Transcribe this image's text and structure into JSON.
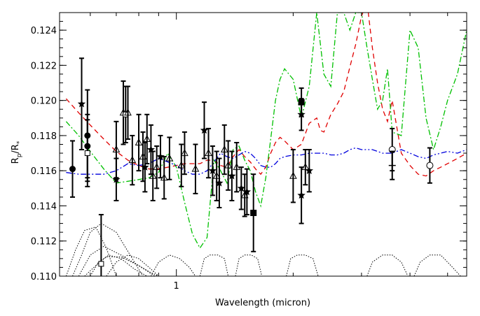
{
  "chart_data": {
    "type": "scatter",
    "title": "",
    "xlabel": "Wavelength (micron)",
    "ylabel": "Rp/R*",
    "ylabel_parts": {
      "base": "R",
      "sub1": "p",
      "slash": "/R",
      "sub2": "*"
    },
    "xscale": "log",
    "xlim": [
      0.5,
      5.6
    ],
    "ylim": [
      0.11,
      0.125
    ],
    "x_ticks": [
      {
        "value": 1,
        "label": "1"
      }
    ],
    "y_ticks": [
      {
        "value": 0.11,
        "label": "0.110"
      },
      {
        "value": 0.112,
        "label": "0.112"
      },
      {
        "value": 0.114,
        "label": "0.114"
      },
      {
        "value": 0.116,
        "label": "0.116"
      },
      {
        "value": 0.118,
        "label": "0.118"
      },
      {
        "value": 0.12,
        "label": "0.120"
      },
      {
        "value": 0.122,
        "label": "0.122"
      },
      {
        "value": 0.124,
        "label": "0.124"
      }
    ],
    "grid": false,
    "legend": "none",
    "colors": {
      "red_model": "#e00000",
      "green_model": "#00c000",
      "blue_model": "#0000dd",
      "filters": "#000000",
      "points": "#000000"
    },
    "series": [
      {
        "style": "dashed",
        "color": "#e00000",
        "x": [
          0.52,
          0.56,
          0.6,
          0.65,
          0.7,
          0.75,
          0.8,
          0.85,
          0.9,
          0.95,
          1.0,
          1.05,
          1.1,
          1.15,
          1.2,
          1.25,
          1.3,
          1.35,
          1.4,
          1.45,
          1.5,
          1.55,
          1.6,
          1.65,
          1.7,
          1.75,
          1.8,
          1.85,
          1.9,
          2.0,
          2.1,
          2.2,
          2.3,
          2.35,
          2.4,
          2.5,
          2.6,
          2.7,
          2.8,
          2.9,
          3.0,
          3.1,
          3.2,
          3.3,
          3.4,
          3.5,
          3.6,
          3.8,
          4.0,
          4.2,
          4.4,
          4.6,
          4.8,
          5.0,
          5.3,
          5.6
        ],
        "y": [
          0.1201,
          0.1193,
          0.1186,
          0.1178,
          0.1171,
          0.1166,
          0.1163,
          0.1161,
          0.1161,
          0.1162,
          0.1163,
          0.1164,
          0.1164,
          0.1164,
          0.1166,
          0.1166,
          0.1163,
          0.1162,
          0.1168,
          0.1172,
          0.1168,
          0.1165,
          0.1161,
          0.1158,
          0.1162,
          0.117,
          0.1176,
          0.1179,
          0.1177,
          0.1172,
          0.1175,
          0.1187,
          0.119,
          0.1183,
          0.1182,
          0.1192,
          0.1198,
          0.1205,
          0.1219,
          0.1232,
          0.1248,
          0.1256,
          0.123,
          0.121,
          0.1195,
          0.1188,
          0.12,
          0.117,
          0.1163,
          0.1158,
          0.1157,
          0.116,
          0.1162,
          0.1164,
          0.1167,
          0.117
        ]
      },
      {
        "style": "dash-dot",
        "color": "#00c000",
        "x": [
          0.52,
          0.56,
          0.6,
          0.65,
          0.7,
          0.75,
          0.8,
          0.85,
          0.9,
          0.95,
          1.0,
          1.05,
          1.1,
          1.15,
          1.2,
          1.25,
          1.3,
          1.35,
          1.4,
          1.45,
          1.5,
          1.55,
          1.6,
          1.65,
          1.7,
          1.75,
          1.8,
          1.85,
          1.9,
          2.0,
          2.1,
          2.2,
          2.3,
          2.4,
          2.5,
          2.6,
          2.7,
          2.8,
          2.9,
          3.0,
          3.1,
          3.2,
          3.3,
          3.4,
          3.5,
          3.6,
          3.8,
          4.0,
          4.2,
          4.4,
          4.6,
          4.8,
          5.0,
          5.3,
          5.6
        ],
        "y": [
          0.1188,
          0.118,
          0.1171,
          0.1161,
          0.1153,
          0.1154,
          0.1155,
          0.1156,
          0.1159,
          0.117,
          0.1162,
          0.1142,
          0.1124,
          0.1116,
          0.1122,
          0.1166,
          0.116,
          0.1153,
          0.1172,
          0.1174,
          0.1166,
          0.116,
          0.1148,
          0.114,
          0.1156,
          0.1178,
          0.12,
          0.1212,
          0.1218,
          0.1212,
          0.119,
          0.1208,
          0.125,
          0.1215,
          0.1208,
          0.125,
          0.125,
          0.124,
          0.125,
          0.125,
          0.123,
          0.1212,
          0.1195,
          0.12,
          0.1218,
          0.1182,
          0.118,
          0.124,
          0.123,
          0.119,
          0.1172,
          0.1185,
          0.12,
          0.1215,
          0.124
        ]
      },
      {
        "style": "dash-dot-dot",
        "color": "#0000dd",
        "x": [
          0.52,
          0.56,
          0.6,
          0.65,
          0.7,
          0.75,
          0.8,
          0.85,
          0.9,
          0.95,
          1.0,
          1.05,
          1.1,
          1.15,
          1.2,
          1.25,
          1.3,
          1.35,
          1.4,
          1.45,
          1.5,
          1.55,
          1.6,
          1.65,
          1.7,
          1.75,
          1.8,
          1.85,
          1.9,
          2.0,
          2.1,
          2.2,
          2.3,
          2.4,
          2.5,
          2.6,
          2.7,
          2.8,
          2.9,
          3.0,
          3.2,
          3.4,
          3.6,
          3.8,
          4.0,
          4.2,
          4.4,
          4.6,
          4.8,
          5.0,
          5.3,
          5.6
        ],
        "y": [
          0.1159,
          0.1158,
          0.1158,
          0.1158,
          0.116,
          0.1164,
          0.1163,
          0.1164,
          0.1167,
          0.1165,
          0.1163,
          0.116,
          0.1158,
          0.1158,
          0.116,
          0.1165,
          0.117,
          0.1168,
          0.1167,
          0.1169,
          0.1171,
          0.117,
          0.1167,
          0.1163,
          0.1162,
          0.1162,
          0.1164,
          0.1167,
          0.1168,
          0.1169,
          0.1169,
          0.117,
          0.117,
          0.117,
          0.1169,
          0.1169,
          0.117,
          0.1172,
          0.1173,
          0.1172,
          0.1172,
          0.117,
          0.117,
          0.1172,
          0.117,
          0.1168,
          0.1167,
          0.1169,
          0.117,
          0.1171,
          0.117,
          0.1172
        ]
      }
    ],
    "measurements": [
      {
        "marker": "circle-filled",
        "x": 0.54,
        "y": 0.1161,
        "err": 0.0016
      },
      {
        "marker": "star",
        "x": 0.57,
        "y": 0.1198,
        "err": 0.0026
      },
      {
        "marker": "circle-filled",
        "x": 0.59,
        "y": 0.118,
        "err": 0.0026
      },
      {
        "marker": "circle-filled",
        "x": 0.59,
        "y": 0.1174,
        "err": 0.0018
      },
      {
        "marker": "square-open",
        "x": 0.59,
        "y": 0.117,
        "err": 0.0019
      },
      {
        "marker": "square-open",
        "x": 0.64,
        "y": 0.1107,
        "err": 0.0028
      },
      {
        "marker": "triangle-open",
        "x": 0.7,
        "y": 0.1172,
        "err": 0.0016
      },
      {
        "marker": "star",
        "x": 0.7,
        "y": 0.1155,
        "err": 0.0012
      },
      {
        "marker": "triangle-open",
        "x": 0.73,
        "y": 0.1193,
        "err": 0.0018
      },
      {
        "marker": "square-open",
        "x": 0.74,
        "y": 0.1192,
        "err": 0.0016
      },
      {
        "marker": "triangle-open",
        "x": 0.75,
        "y": 0.1193,
        "err": 0.0015
      },
      {
        "marker": "triangle-open",
        "x": 0.77,
        "y": 0.1166,
        "err": 0.0014
      },
      {
        "marker": "triangle-open",
        "x": 0.8,
        "y": 0.1176,
        "err": 0.0016
      },
      {
        "marker": "triangle-open",
        "x": 0.82,
        "y": 0.1168,
        "err": 0.0014
      },
      {
        "marker": "star",
        "x": 0.83,
        "y": 0.1162,
        "err": 0.0014
      },
      {
        "marker": "triangle-open",
        "x": 0.84,
        "y": 0.1178,
        "err": 0.0014
      },
      {
        "marker": "star",
        "x": 0.86,
        "y": 0.1172,
        "err": 0.0014
      },
      {
        "marker": "triangle-open",
        "x": 0.87,
        "y": 0.1157,
        "err": 0.0014
      },
      {
        "marker": "triangle-open",
        "x": 0.89,
        "y": 0.1162,
        "err": 0.0012
      },
      {
        "marker": "star",
        "x": 0.91,
        "y": 0.1168,
        "err": 0.0012
      },
      {
        "marker": "triangle-open",
        "x": 0.93,
        "y": 0.1156,
        "err": 0.0012
      },
      {
        "marker": "triangle-open",
        "x": 0.96,
        "y": 0.1167,
        "err": 0.0012
      },
      {
        "marker": "triangle-open",
        "x": 1.03,
        "y": 0.1163,
        "err": 0.0012
      },
      {
        "marker": "triangle-open",
        "x": 1.05,
        "y": 0.117,
        "err": 0.0012
      },
      {
        "marker": "triangle-open",
        "x": 1.12,
        "y": 0.1161,
        "err": 0.0014
      },
      {
        "marker": "star",
        "x": 1.18,
        "y": 0.1183,
        "err": 0.0016
      },
      {
        "marker": "triangle-open",
        "x": 1.21,
        "y": 0.117,
        "err": 0.0014
      },
      {
        "marker": "star",
        "x": 1.24,
        "y": 0.116,
        "err": 0.0014
      },
      {
        "marker": "triangle-open",
        "x": 1.27,
        "y": 0.1157,
        "err": 0.0014
      },
      {
        "marker": "star",
        "x": 1.29,
        "y": 0.1153,
        "err": 0.0014
      },
      {
        "marker": "triangle-open",
        "x": 1.33,
        "y": 0.1172,
        "err": 0.0014
      },
      {
        "marker": "triangle-open",
        "x": 1.36,
        "y": 0.1163,
        "err": 0.0014
      },
      {
        "marker": "star",
        "x": 1.39,
        "y": 0.1157,
        "err": 0.0014
      },
      {
        "marker": "triangle-open",
        "x": 1.43,
        "y": 0.1162,
        "err": 0.0014
      },
      {
        "marker": "star",
        "x": 1.47,
        "y": 0.115,
        "err": 0.0012
      },
      {
        "marker": "triangle-open",
        "x": 1.5,
        "y": 0.1146,
        "err": 0.0012
      },
      {
        "marker": "star",
        "x": 1.52,
        "y": 0.1148,
        "err": 0.0013
      },
      {
        "marker": "square-filled",
        "x": 1.58,
        "y": 0.1136,
        "err": 0.0022
      },
      {
        "marker": "triangle-open",
        "x": 2.0,
        "y": 0.1157,
        "err": 0.0015
      },
      {
        "marker": "star",
        "x": 2.1,
        "y": 0.1146,
        "err": 0.0016
      },
      {
        "marker": "square-filled",
        "x": 2.1,
        "y": 0.1199,
        "err": 0.0008
      },
      {
        "marker": "star",
        "x": 2.1,
        "y": 0.1192,
        "err": 0.0009
      },
      {
        "marker": "triangle-open",
        "x": 2.15,
        "y": 0.1162,
        "err": 0.001
      },
      {
        "marker": "star",
        "x": 2.2,
        "y": 0.116,
        "err": 0.0012
      },
      {
        "marker": "circle-open",
        "x": 3.6,
        "y": 0.1172,
        "err": 0.0012
      },
      {
        "marker": "plus",
        "x": 3.6,
        "y": 0.1163,
        "err": 0.0008
      },
      {
        "marker": "circle-open",
        "x": 4.5,
        "y": 0.1163,
        "err": 0.001
      }
    ],
    "filter_curves": [
      {
        "style": "dotted",
        "x": [
          0.52,
          0.55,
          0.58,
          0.62,
          0.66,
          0.7
        ],
        "y": [
          0.11,
          0.1115,
          0.1126,
          0.1128,
          0.1116,
          0.11
        ]
      },
      {
        "style": "dotted",
        "x": [
          0.54,
          0.57,
          0.6,
          0.64,
          0.7,
          0.76,
          0.82
        ],
        "y": [
          0.11,
          0.1112,
          0.1125,
          0.113,
          0.1125,
          0.1112,
          0.11
        ]
      },
      {
        "style": "dotted",
        "x": [
          0.56,
          0.6,
          0.65,
          0.72,
          0.8,
          0.88
        ],
        "y": [
          0.11,
          0.1112,
          0.1117,
          0.1112,
          0.1106,
          0.11
        ]
      },
      {
        "style": "dotted",
        "x": [
          0.58,
          0.62,
          0.66,
          0.72,
          0.8,
          0.86,
          0.9
        ],
        "y": [
          0.11,
          0.1106,
          0.1111,
          0.1111,
          0.1106,
          0.1102,
          0.11
        ]
      },
      {
        "style": "dotted",
        "x": [
          0.6,
          0.63,
          0.67,
          0.72,
          0.78,
          0.84
        ],
        "y": [
          0.11,
          0.1108,
          0.1112,
          0.111,
          0.1104,
          0.11
        ]
      },
      {
        "style": "dotted",
        "x": [
          0.66,
          0.7,
          0.75,
          0.8,
          0.85,
          0.9
        ],
        "y": [
          0.11,
          0.1108,
          0.1112,
          0.111,
          0.1105,
          0.11
        ]
      },
      {
        "style": "dotted",
        "x": [
          0.86,
          0.9,
          0.96,
          1.02,
          1.08,
          1.12
        ],
        "y": [
          0.11,
          0.1108,
          0.1112,
          0.111,
          0.1105,
          0.11
        ]
      },
      {
        "style": "dotted",
        "x": [
          1.15,
          1.18,
          1.22,
          1.28,
          1.33,
          1.36
        ],
        "y": [
          0.11,
          0.111,
          0.1112,
          0.1112,
          0.111,
          0.11
        ]
      },
      {
        "style": "dotted",
        "x": [
          1.42,
          1.45,
          1.5,
          1.56,
          1.62,
          1.66
        ],
        "y": [
          0.11,
          0.111,
          0.1112,
          0.1112,
          0.111,
          0.11
        ]
      },
      {
        "style": "dotted",
        "x": [
          1.92,
          1.97,
          2.05,
          2.15,
          2.25,
          2.32
        ],
        "y": [
          0.11,
          0.111,
          0.1112,
          0.1112,
          0.111,
          0.11
        ]
      },
      {
        "style": "dotted",
        "x": [
          3.1,
          3.2,
          3.4,
          3.6,
          3.8,
          3.95
        ],
        "y": [
          0.11,
          0.1108,
          0.1112,
          0.1112,
          0.1108,
          0.11
        ]
      },
      {
        "style": "dotted",
        "x": [
          4.1,
          4.25,
          4.5,
          4.8,
          5.1,
          5.4
        ],
        "y": [
          0.11,
          0.1108,
          0.1112,
          0.1112,
          0.1106,
          0.11
        ]
      }
    ]
  }
}
